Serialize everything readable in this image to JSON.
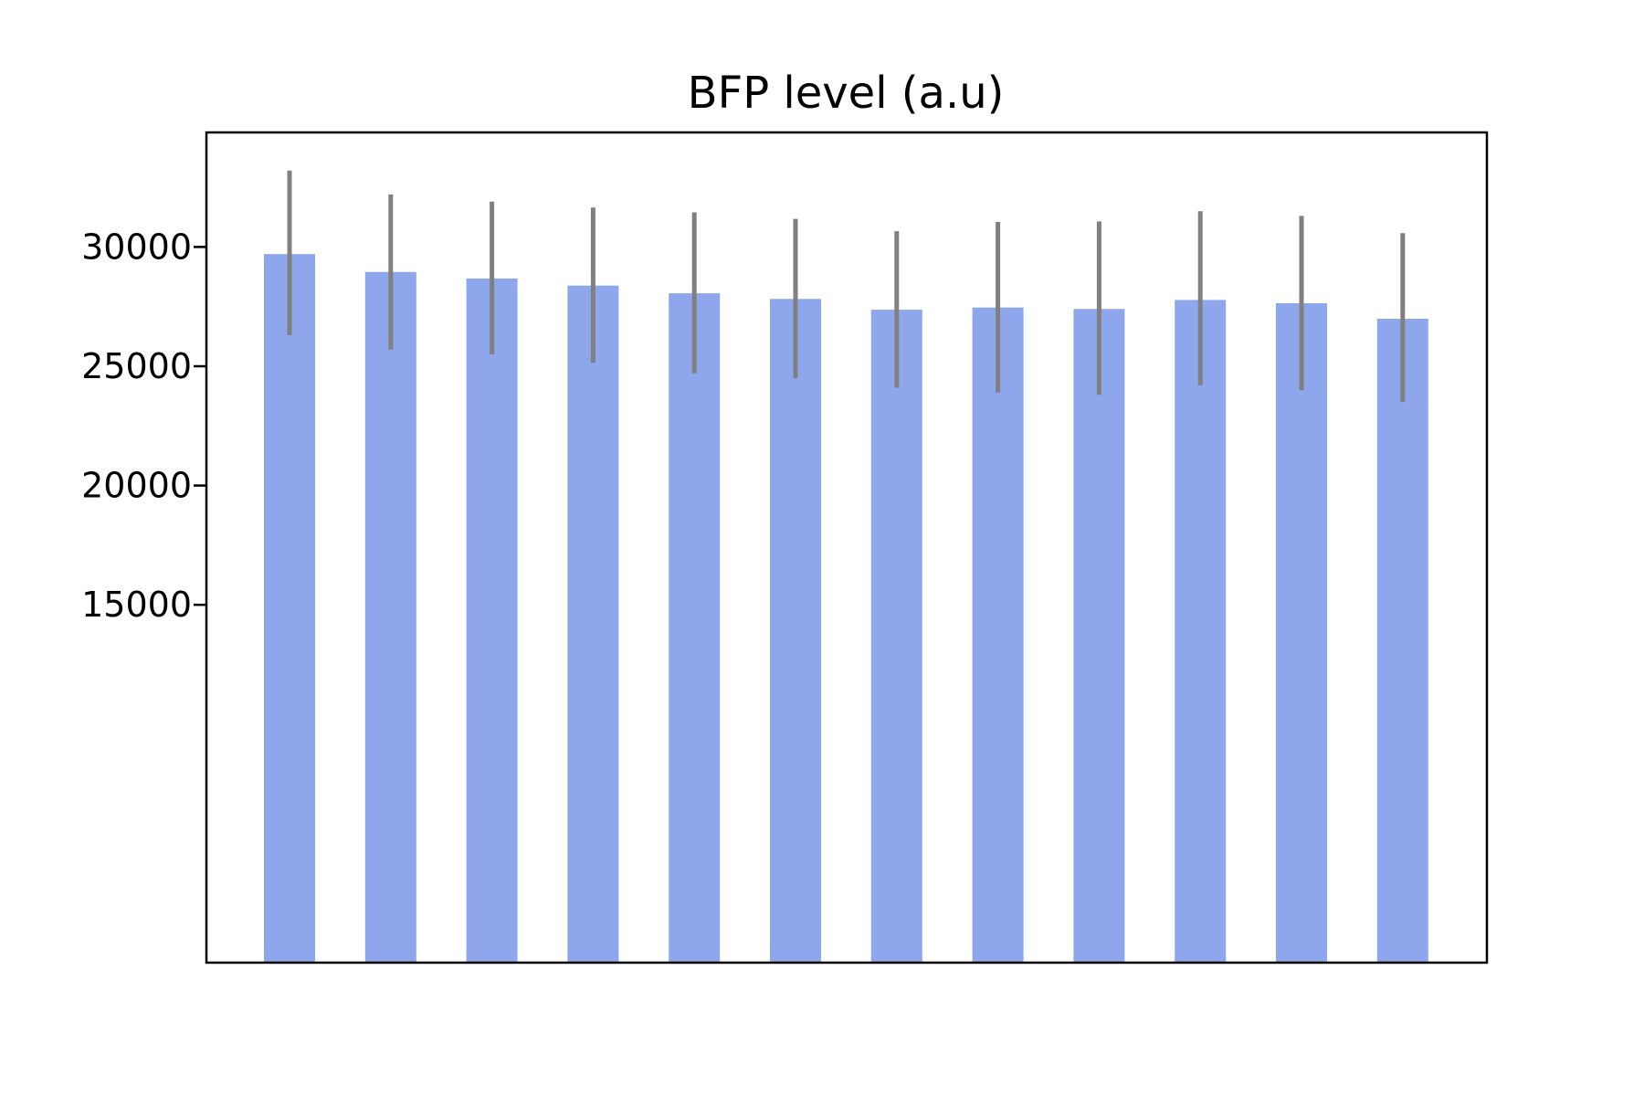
{
  "chart_data": {
    "type": "bar",
    "title": "BFP level (a.u)",
    "xlabel": "",
    "ylabel": "",
    "categories": [
      "",
      "",
      "",
      "",
      "",
      "",
      "",
      "",
      "",
      "",
      "",
      ""
    ],
    "values": [
      29700,
      28950,
      28680,
      28380,
      28060,
      27820,
      27370,
      27460,
      27400,
      27780,
      27640,
      26990
    ],
    "error_low": [
      26300,
      25700,
      25500,
      25150,
      24700,
      24500,
      24100,
      23900,
      23800,
      24200,
      24000,
      23500
    ],
    "error_high": [
      33200,
      32200,
      31900,
      31650,
      31450,
      31180,
      30660,
      31050,
      31070,
      31500,
      31300,
      30580
    ],
    "ylim": [
      0,
      34800
    ],
    "yticks": [
      15000,
      20000,
      25000,
      30000
    ],
    "ytick_labels": [
      "15000",
      "20000",
      "25000",
      "30000"
    ],
    "grid": false,
    "legend": "none",
    "colors": {
      "bar": "#8ea6ec",
      "error_bar": "#808080",
      "axes": "#000000"
    }
  }
}
